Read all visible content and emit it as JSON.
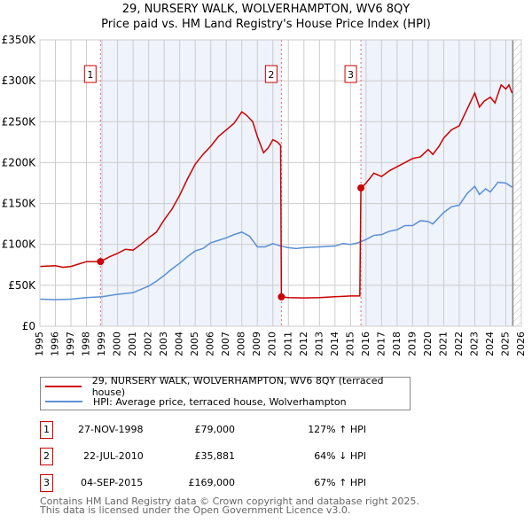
{
  "chart_data": {
    "type": "line",
    "title": "29, NURSERY WALK, WOLVERHAMPTON, WV6 8QY",
    "subtitle": "Price paid vs. HM Land Registry's House Price Index (HPI)",
    "xlim": [
      1995,
      2026
    ],
    "ylim": [
      0,
      350000
    ],
    "y_ticks": [
      0,
      50000,
      100000,
      150000,
      200000,
      250000,
      300000,
      350000
    ],
    "y_tick_labels": [
      "£0",
      "£50K",
      "£100K",
      "£150K",
      "£200K",
      "£250K",
      "£300K",
      "£350K"
    ],
    "x_ticks": [
      "1995",
      "1996",
      "1997",
      "1998",
      "1999",
      "2000",
      "2001",
      "2002",
      "2003",
      "2004",
      "2005",
      "2006",
      "2007",
      "2008",
      "2009",
      "2010",
      "2011",
      "2012",
      "2013",
      "2014",
      "2015",
      "2016",
      "2017",
      "2018",
      "2019",
      "2020",
      "2021",
      "2022",
      "2023",
      "2024",
      "2025",
      "2026"
    ],
    "grid": true,
    "series": [
      {
        "name": "29, NURSERY WALK, WOLVERHAMPTON, WV6 8QY (terraced house)",
        "color": "#cc0000",
        "x": [
          1995,
          1996,
          1996.5,
          1997,
          1997.5,
          1998,
          1998.9,
          1999.5,
          2000,
          2000.5,
          2001,
          2001.5,
          2002,
          2002.5,
          2003,
          2003.5,
          2004,
          2004.5,
          2005,
          2005.5,
          2006,
          2006.5,
          2007,
          2007.5,
          2008,
          2008.3,
          2008.7,
          2009,
          2009.4,
          2009.7,
          2010,
          2010.3,
          2010.5,
          2010.55,
          2011,
          2012,
          2013,
          2014,
          2015,
          2015.6,
          2015.67,
          2016,
          2016.5,
          2017,
          2017.5,
          2018,
          2018.5,
          2019,
          2019.5,
          2020,
          2020.3,
          2020.7,
          2021,
          2021.5,
          2022,
          2022.5,
          2023,
          2023.3,
          2023.6,
          2024,
          2024.3,
          2024.7,
          2025,
          2025.2,
          2025.4
        ],
        "y": [
          73000,
          74000,
          72000,
          73000,
          76000,
          79000,
          79000,
          85000,
          89000,
          94000,
          93000,
          100000,
          108000,
          115000,
          130000,
          143000,
          160000,
          180000,
          198000,
          210000,
          220000,
          232000,
          240000,
          248000,
          262000,
          258000,
          250000,
          232000,
          212000,
          218000,
          228000,
          225000,
          221000,
          35881,
          35000,
          34500,
          35000,
          36000,
          37000,
          37000,
          169000,
          175000,
          187000,
          183000,
          190000,
          195000,
          200000,
          205000,
          207000,
          216000,
          210000,
          220000,
          230000,
          240000,
          245000,
          265000,
          285000,
          268000,
          275000,
          280000,
          273000,
          295000,
          290000,
          295000,
          285000
        ]
      },
      {
        "name": "HPI: Average price, terraced house, Wolverhampton",
        "color": "#5b8fd4",
        "x": [
          1995,
          1996,
          1997,
          1998,
          1999,
          2000,
          2001,
          2001.5,
          2002,
          2002.5,
          2003,
          2003.5,
          2004,
          2004.5,
          2005,
          2005.5,
          2006,
          2006.5,
          2007,
          2007.5,
          2008,
          2008.5,
          2009,
          2009.5,
          2010,
          2010.5,
          2011,
          2011.5,
          2012,
          2013,
          2014,
          2014.5,
          2015,
          2015.5,
          2016,
          2016.5,
          2017,
          2017.5,
          2018,
          2018.5,
          2019,
          2019.5,
          2020,
          2020.3,
          2020.7,
          2021,
          2021.5,
          2022,
          2022.5,
          2023,
          2023.3,
          2023.7,
          2024,
          2024.5,
          2025,
          2025.4
        ],
        "y": [
          33000,
          32500,
          33000,
          35000,
          36000,
          39000,
          41000,
          45000,
          49000,
          55000,
          62000,
          70000,
          77000,
          85000,
          92000,
          95000,
          102000,
          105000,
          108000,
          112000,
          115000,
          110000,
          97000,
          97000,
          101000,
          98000,
          96000,
          95000,
          96000,
          97000,
          98000,
          101000,
          100000,
          102000,
          106000,
          111000,
          112000,
          116000,
          118000,
          123000,
          123000,
          129000,
          128000,
          125000,
          133000,
          139000,
          146000,
          148000,
          162000,
          171000,
          161000,
          168000,
          164000,
          176000,
          175000,
          170000
        ]
      }
    ],
    "sales": [
      {
        "label": "1",
        "x": 1998.9,
        "y": 79000,
        "date": "27-NOV-1998",
        "price": "£79,000",
        "hpi": "127% ↑ HPI"
      },
      {
        "label": "2",
        "x": 2010.55,
        "y": 35881,
        "date": "22-JUL-2010",
        "price": "£35,881",
        "hpi": "64% ↓ HPI"
      },
      {
        "label": "3",
        "x": 2015.67,
        "y": 169000,
        "date": "04-SEP-2015",
        "price": "£169,000",
        "hpi": "67% ↑ HPI"
      }
    ],
    "forecast_start": 2025.45,
    "legend_position": "below"
  },
  "footer": [
    "Contains HM Land Registry data © Crown copyright and database right 2025.",
    "This data is licensed under the Open Government Licence v3.0."
  ]
}
